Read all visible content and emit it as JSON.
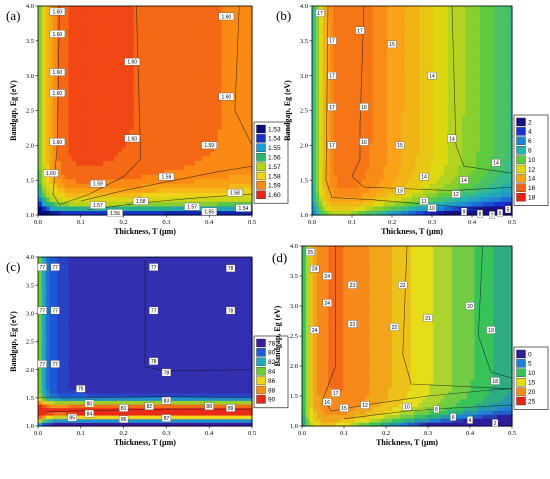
{
  "chart_data": [
    {
      "id": "a",
      "type": "heatmap",
      "panel_label": "(a)",
      "xlabel": "Thickness, T (μm)",
      "ylabel": "Bandgap, Eg (eV)",
      "xlim": [
        0.0,
        0.5
      ],
      "ylim": [
        1.0,
        4.0
      ],
      "xticks": [
        "0.0",
        "0.1",
        "0.2",
        "0.3",
        "0.4",
        "0.5"
      ],
      "yticks": [
        "1.0",
        "1.5",
        "2.0",
        "2.5",
        "3.0",
        "3.5",
        "4.0"
      ],
      "legend_levels": [
        "1.53",
        "1.54",
        "1.55",
        "1.56",
        "1.57",
        "1.58",
        "1.59",
        "1.60"
      ],
      "contour_labels": [
        "1.60",
        "1.60",
        "1.60",
        "1.60",
        "1.60",
        "1.60",
        "1.60",
        "1.60",
        "1.60",
        "1.60",
        "1.59",
        "1.59",
        "1.59",
        "1.58",
        "1.58",
        "1.57",
        "1.57",
        "1.56",
        "1.55",
        "1.54"
      ]
    },
    {
      "id": "b",
      "type": "heatmap",
      "panel_label": "(b)",
      "xlabel": "Thickness, T (μm)",
      "ylabel": "Bandgap, Eg (eV)",
      "xlim": [
        0.0,
        0.5
      ],
      "ylim": [
        1.0,
        4.0
      ],
      "xticks": [
        "0.0",
        "0.1",
        "0.2",
        "0.3",
        "0.4",
        "0.5"
      ],
      "yticks": [
        "1.0",
        "1.5",
        "2.0",
        "2.5",
        "3.0",
        "3.5",
        "4.0"
      ],
      "legend_levels": [
        "2",
        "4",
        "6",
        "8",
        "10",
        "12",
        "14",
        "16",
        "18"
      ],
      "contour_labels": [
        "17",
        "17",
        "17",
        "17",
        "17",
        "17",
        "16",
        "16",
        "15",
        "15",
        "14",
        "14",
        "14",
        "14",
        "14",
        "13",
        "12",
        "11",
        "10",
        "9",
        "8",
        "7",
        "6",
        "5"
      ]
    },
    {
      "id": "c",
      "type": "heatmap",
      "panel_label": "(c)",
      "xlabel": "Thickness, T (μm)",
      "ylabel": "Bandgap, Eg (eV)",
      "xlim": [
        0.0,
        0.5
      ],
      "ylim": [
        1.0,
        4.0
      ],
      "xticks": [
        "0.0",
        "0.1",
        "0.2",
        "0.3",
        "0.4",
        "0.5"
      ],
      "yticks": [
        "1.0",
        "1.5",
        "2.0",
        "2.5",
        "3.0",
        "3.5",
        "4.0"
      ],
      "legend_levels": [
        "78",
        "80",
        "82",
        "84",
        "86",
        "88",
        "90"
      ],
      "contour_labels": [
        "77",
        "77",
        "77",
        "77",
        "77",
        "77",
        "77",
        "77",
        "78",
        "78",
        "78",
        "78",
        "79",
        "80",
        "81",
        "82",
        "83",
        "84",
        "85",
        "86",
        "87",
        "88",
        "89"
      ]
    },
    {
      "id": "d",
      "type": "heatmap",
      "panel_label": "(d)",
      "xlabel": "Thickness, T (μm)",
      "ylabel": "Bandgap, Eg (eV)",
      "xlim": [
        0.0,
        0.5
      ],
      "ylim": [
        1.0,
        4.0
      ],
      "xticks": [
        "0.0",
        "0.1",
        "0.2",
        "0.3",
        "0.4",
        "0.5"
      ],
      "yticks": [
        "1.0",
        "1.5",
        "2.0",
        "2.5",
        "3.0",
        "3.5",
        "4.0"
      ],
      "legend_levels": [
        "0",
        "5",
        "10",
        "15",
        "20",
        "25"
      ],
      "contour_labels": [
        "25",
        "24",
        "24",
        "24",
        "24",
        "23",
        "23",
        "22",
        "22",
        "21",
        "20",
        "19",
        "18",
        "17",
        "16",
        "15",
        "12",
        "10",
        "8",
        "6",
        "4",
        "2"
      ]
    }
  ]
}
